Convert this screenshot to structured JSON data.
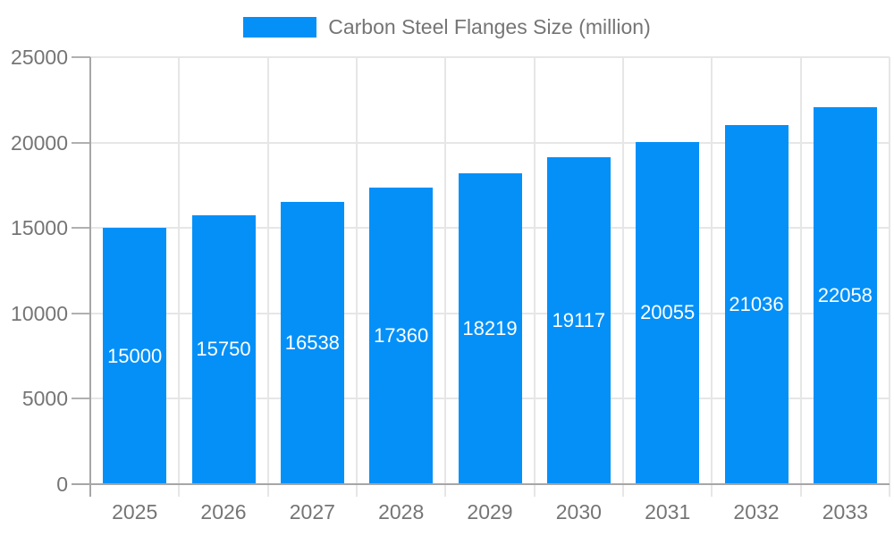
{
  "legend": {
    "label": "Carbon Steel Flanges Size (million)"
  },
  "colors": {
    "bar": "#0590f8",
    "bar_value_label": "#ffffff",
    "axis_text": "#757575",
    "grid_line": "#e6e6e6",
    "tick_line": "#b0b0b0",
    "axis_line": "#a6a6a6",
    "background": "#ffffff"
  },
  "chart_data": {
    "type": "bar",
    "title": "",
    "legend_entries": [
      "Carbon Steel Flanges Size (million)"
    ],
    "legend_position": "top-center",
    "categories": [
      "2025",
      "2026",
      "2027",
      "2028",
      "2029",
      "2030",
      "2031",
      "2032",
      "2033"
    ],
    "series": [
      {
        "name": "Carbon Steel Flanges Size (million)",
        "values": [
          15000,
          15750,
          16538,
          17360,
          18219,
          19117,
          20055,
          21036,
          22058
        ]
      }
    ],
    "xlabel": "",
    "ylabel": "",
    "ylim": [
      0,
      25000
    ],
    "ytick_step": 5000,
    "ytick_labels": [
      "0",
      "5000",
      "10000",
      "15000",
      "20000",
      "25000"
    ],
    "grid": true,
    "grid_vertical": true,
    "value_labels_position": "inside-middle",
    "bar_color": "#0590f8"
  }
}
